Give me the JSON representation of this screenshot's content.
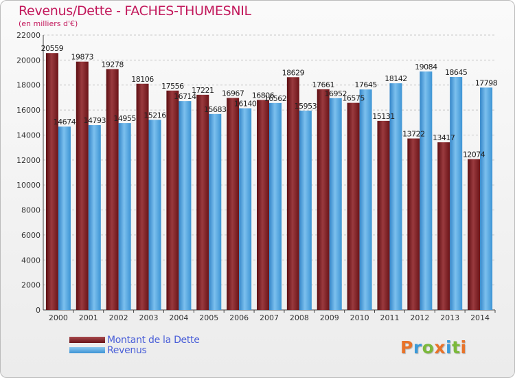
{
  "chart_data": {
    "type": "bar",
    "title": "Revenus/Dette - FACHES-THUMESNIL",
    "subtitle": "(en milliers d'€)",
    "categories": [
      "2000",
      "2001",
      "2002",
      "2003",
      "2004",
      "2005",
      "2006",
      "2007",
      "2008",
      "2009",
      "2010",
      "2011",
      "2012",
      "2013",
      "2014"
    ],
    "series": [
      {
        "name": "Montant de la Dette",
        "color": "#7a1a1e",
        "values": [
          20559,
          19873,
          19278,
          18106,
          17556,
          17221,
          16967,
          16806,
          18629,
          17661,
          16575,
          15131,
          13722,
          13417,
          12074
        ],
        "labels": [
          "20559",
          "19873",
          "19278",
          "18106",
          "17556",
          "17221",
          "16967",
          "16806",
          "18629",
          "17661",
          "16575",
          "15131",
          "13722",
          "13417",
          "12074"
        ]
      },
      {
        "name": "Revenus",
        "color": "#4aa3e0",
        "values": [
          14674,
          14793,
          14955,
          15216,
          16714,
          15683,
          16140,
          16562,
          15953,
          16952,
          17645,
          18142,
          19084,
          18645,
          17798
        ],
        "labels": [
          "14674",
          "14793",
          "14955",
          "15216",
          "16714",
          "15683",
          "16140",
          "16562",
          "15953",
          "16952",
          "17645",
          "18142",
          "19084",
          "18645",
          "17798"
        ]
      }
    ],
    "ylim": [
      0,
      22000
    ],
    "yticks": [
      0,
      2000,
      4000,
      6000,
      8000,
      10000,
      12000,
      14000,
      16000,
      18000,
      20000,
      22000
    ],
    "grid": true,
    "legend": "bottom-left"
  },
  "legend": {
    "debt_label": "Montant de la Dette",
    "revenue_label": "Revenus"
  },
  "logo": {
    "text": "Proxiti"
  }
}
